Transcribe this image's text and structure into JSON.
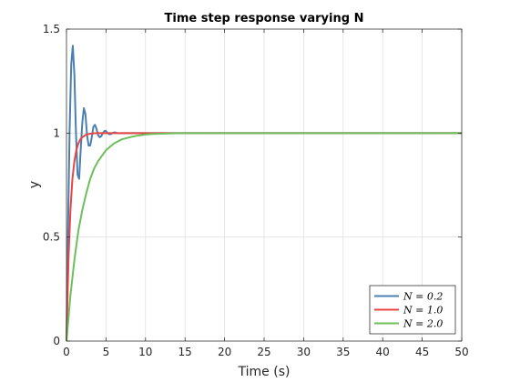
{
  "chart_data": {
    "type": "line",
    "title": "Time step response varying N",
    "xlabel": "Time (s)",
    "ylabel": "y",
    "xlim": [
      0,
      50
    ],
    "ylim": [
      0,
      1.5
    ],
    "xticks": [
      "0",
      "5",
      "10",
      "15",
      "20",
      "25",
      "30",
      "35",
      "40",
      "45",
      "50"
    ],
    "yticks": [
      "0",
      "0.5",
      "1",
      "1.5"
    ],
    "grid": true,
    "legend_position": "bottom-right",
    "series": [
      {
        "name": "N = 0.2",
        "color": "#4a7fb0",
        "x": [
          0,
          0.2,
          0.4,
          0.6,
          0.8,
          1.0,
          1.2,
          1.4,
          1.6,
          1.8,
          2.0,
          2.2,
          2.4,
          2.6,
          2.8,
          3.0,
          3.2,
          3.4,
          3.6,
          3.8,
          4.0,
          4.2,
          4.4,
          4.6,
          4.8,
          5.0,
          5.2,
          5.4,
          5.6,
          5.8,
          6.0,
          6.2,
          6.4,
          6.6,
          6.8,
          7.0,
          8.0,
          10,
          20,
          30,
          40,
          50
        ],
        "y": [
          0,
          0.55,
          1.02,
          1.33,
          1.42,
          1.28,
          1.0,
          0.8,
          0.78,
          0.92,
          1.05,
          1.12,
          1.09,
          0.99,
          0.94,
          0.94,
          0.98,
          1.03,
          1.04,
          1.02,
          0.99,
          0.98,
          0.985,
          1.0,
          1.01,
          1.01,
          1.0,
          0.995,
          0.995,
          1.0,
          1.003,
          1.003,
          1.0,
          0.999,
          0.999,
          1.0,
          1.0,
          1.0,
          1.0,
          1.0,
          1.0,
          1.0
        ]
      },
      {
        "name": "N = 1.0",
        "color": "#e84545",
        "x": [
          0,
          0.25,
          0.5,
          0.75,
          1.0,
          1.25,
          1.5,
          1.75,
          2.0,
          2.5,
          3.0,
          3.5,
          4.0,
          4.5,
          5.0,
          5.5,
          6.0,
          7.0,
          8.0,
          9.0,
          10,
          12,
          15,
          20,
          30,
          40,
          50
        ],
        "y": [
          0,
          0.39,
          0.63,
          0.78,
          0.865,
          0.918,
          0.95,
          0.97,
          0.98,
          0.993,
          0.997,
          0.999,
          1.0,
          1.0,
          1.0,
          1.0,
          1.0,
          1.0,
          1.0,
          1.0,
          1.0,
          1.0,
          1.0,
          1.0,
          1.0,
          1.0,
          1.0
        ]
      },
      {
        "name": "N = 2.0",
        "color": "#6cbf5a",
        "x": [
          0,
          0.5,
          1,
          1.5,
          2,
          2.5,
          3,
          3.5,
          4,
          5,
          6,
          7,
          8,
          9,
          10,
          11,
          12,
          13,
          14,
          15,
          16,
          18,
          20,
          25,
          30,
          40,
          50
        ],
        "y": [
          0,
          0.22,
          0.39,
          0.53,
          0.63,
          0.71,
          0.78,
          0.83,
          0.865,
          0.918,
          0.95,
          0.97,
          0.98,
          0.988,
          0.993,
          0.996,
          0.997,
          0.998,
          0.999,
          1.0,
          1.0,
          1.0,
          1.0,
          1.0,
          1.0,
          1.0,
          1.0
        ]
      }
    ]
  }
}
